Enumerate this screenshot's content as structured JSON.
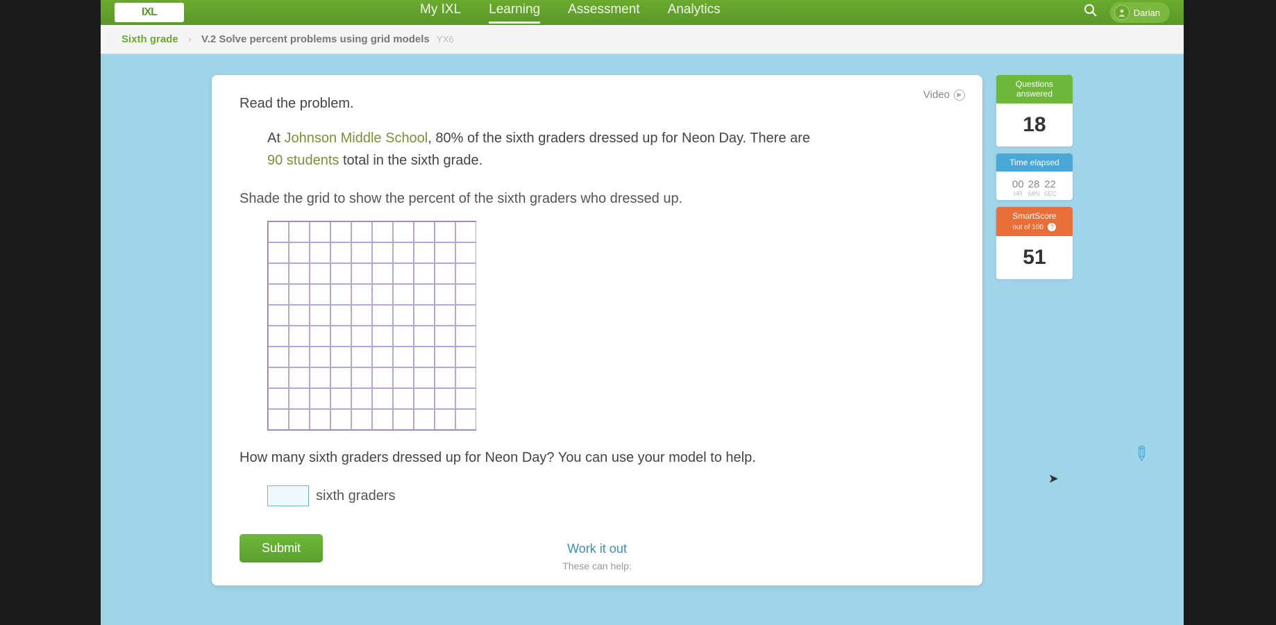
{
  "nav": {
    "logo": "IXL",
    "items": [
      "My IXL",
      "Learning",
      "Assessment",
      "Analytics"
    ],
    "active_index": 1,
    "user_name": "Darian"
  },
  "breadcrumb": {
    "level": "Sixth grade",
    "skill": "V.2 Solve percent problems using grid models",
    "code": "YX6"
  },
  "video_label": "Video",
  "prompt_read": "Read the problem.",
  "problem": {
    "line1_pre": "At ",
    "line1_hl": "Johnson Middle School",
    "line1_post": ", 80% of the sixth graders dressed up for Neon Day. There are",
    "line2_hl": "90 students",
    "line2_post": " total in the sixth grade."
  },
  "instruction": "Shade the grid to show the percent of the sixth graders who dressed up.",
  "grid": {
    "rows": 10,
    "cols": 10,
    "border_color": "#8a6fb5",
    "cell_border_color": "#b8a5d0"
  },
  "question2": "How many sixth graders dressed up for Neon Day? You can use your model to help.",
  "answer_unit": "sixth graders",
  "submit_label": "Submit",
  "workitout": "Work it out",
  "help_hint": "These can help:",
  "sidebar": {
    "questions": {
      "label": "Questions answered",
      "value": "18"
    },
    "time": {
      "label": "Time elapsed",
      "hr": "00",
      "min": "28",
      "sec": "22",
      "hr_lbl": "HR",
      "min_lbl": "MIN",
      "sec_lbl": "SEC"
    },
    "smartscore": {
      "label": "SmartScore",
      "sub": "out of 100",
      "value": "51"
    }
  },
  "colors": {
    "nav_bg": "#5a9828",
    "page_bg": "#a0d4e8",
    "green_head": "#6db83a",
    "blue_head": "#4aa8d8",
    "orange_head": "#e86f3a"
  }
}
